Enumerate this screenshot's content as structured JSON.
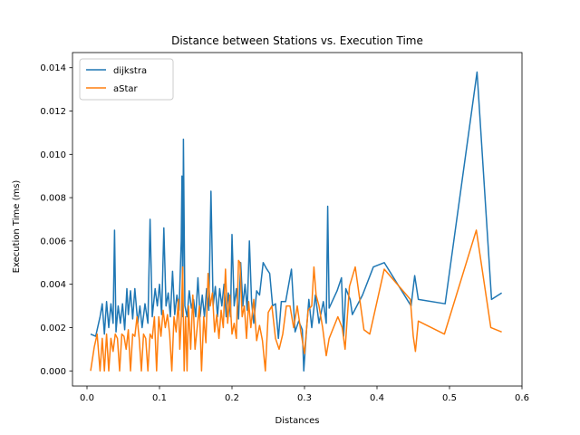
{
  "chart_data": {
    "type": "line",
    "title": "Distance between Stations vs. Execution Time",
    "xlabel": "Distances",
    "ylabel": "Execution Time (ms)",
    "xlim": [
      -0.02,
      0.6
    ],
    "ylim": [
      -0.0007,
      0.0147
    ],
    "xticks": [
      0.0,
      0.1,
      0.2,
      0.3,
      0.4,
      0.5,
      0.6
    ],
    "xtick_labels": [
      "0.0",
      "0.1",
      "0.2",
      "0.3",
      "0.4",
      "0.5",
      "0.6"
    ],
    "yticks": [
      0.0,
      0.002,
      0.004,
      0.006,
      0.008,
      0.01,
      0.012,
      0.014
    ],
    "ytick_labels": [
      "0.000",
      "0.002",
      "0.004",
      "0.006",
      "0.008",
      "0.010",
      "0.012",
      "0.014"
    ],
    "grid": false,
    "legend_position": "top-left",
    "series": [
      {
        "name": "dijkstra",
        "color": "#1f77b4",
        "points": [
          [
            0.005,
            0.0017
          ],
          [
            0.012,
            0.0016
          ],
          [
            0.018,
            0.0025
          ],
          [
            0.021,
            0.0031
          ],
          [
            0.024,
            0.0017
          ],
          [
            0.027,
            0.0032
          ],
          [
            0.03,
            0.002
          ],
          [
            0.033,
            0.0031
          ],
          [
            0.036,
            0.0022
          ],
          [
            0.038,
            0.0065
          ],
          [
            0.04,
            0.0018
          ],
          [
            0.043,
            0.003
          ],
          [
            0.046,
            0.0022
          ],
          [
            0.049,
            0.0031
          ],
          [
            0.052,
            0.0019
          ],
          [
            0.055,
            0.0038
          ],
          [
            0.057,
            0.0026
          ],
          [
            0.06,
            0.0037
          ],
          [
            0.063,
            0.0024
          ],
          [
            0.066,
            0.0038
          ],
          [
            0.07,
            0.0022
          ],
          [
            0.073,
            0.003
          ],
          [
            0.076,
            0.002
          ],
          [
            0.08,
            0.0031
          ],
          [
            0.084,
            0.0022
          ],
          [
            0.087,
            0.007
          ],
          [
            0.09,
            0.0025
          ],
          [
            0.094,
            0.0038
          ],
          [
            0.097,
            0.003
          ],
          [
            0.1,
            0.004
          ],
          [
            0.103,
            0.0026
          ],
          [
            0.106,
            0.0066
          ],
          [
            0.109,
            0.003
          ],
          [
            0.112,
            0.0036
          ],
          [
            0.115,
            0.0025
          ],
          [
            0.118,
            0.0046
          ],
          [
            0.121,
            0.0026
          ],
          [
            0.124,
            0.0035
          ],
          [
            0.127,
            0.0028
          ],
          [
            0.13,
            0.006
          ],
          [
            0.131,
            0.009
          ],
          [
            0.132,
            0.0025
          ],
          [
            0.133,
            0.0107
          ],
          [
            0.135,
            0.003
          ],
          [
            0.138,
            0.0025
          ],
          [
            0.141,
            0.0037
          ],
          [
            0.144,
            0.0029
          ],
          [
            0.147,
            0.0033
          ],
          [
            0.15,
            0.0025
          ],
          [
            0.153,
            0.0043
          ],
          [
            0.156,
            0.0025
          ],
          [
            0.159,
            0.0035
          ],
          [
            0.162,
            0.0025
          ],
          [
            0.165,
            0.0038
          ],
          [
            0.168,
            0.0028
          ],
          [
            0.171,
            0.0083
          ],
          [
            0.174,
            0.003
          ],
          [
            0.177,
            0.0039
          ],
          [
            0.18,
            0.0025
          ],
          [
            0.183,
            0.0038
          ],
          [
            0.186,
            0.003
          ],
          [
            0.189,
            0.004
          ],
          [
            0.192,
            0.0025
          ],
          [
            0.195,
            0.0036
          ],
          [
            0.198,
            0.0025
          ],
          [
            0.2,
            0.0063
          ],
          [
            0.203,
            0.003
          ],
          [
            0.206,
            0.0038
          ],
          [
            0.209,
            0.0024
          ],
          [
            0.212,
            0.005
          ],
          [
            0.215,
            0.003
          ],
          [
            0.218,
            0.004
          ],
          [
            0.221,
            0.0028
          ],
          [
            0.224,
            0.006
          ],
          [
            0.227,
            0.0032
          ],
          [
            0.23,
            0.0022
          ],
          [
            0.234,
            0.0037
          ],
          [
            0.238,
            0.0035
          ],
          [
            0.243,
            0.005
          ],
          [
            0.248,
            0.0047
          ],
          [
            0.252,
            0.0045
          ],
          [
            0.256,
            0.003
          ],
          [
            0.26,
            0.0031
          ],
          [
            0.264,
            0.0015
          ],
          [
            0.268,
            0.0032
          ],
          [
            0.274,
            0.0032
          ],
          [
            0.282,
            0.0047
          ],
          [
            0.287,
            0.0018
          ],
          [
            0.292,
            0.0023
          ],
          [
            0.297,
            0.0019
          ],
          [
            0.299,
            0.0
          ],
          [
            0.303,
            0.002
          ],
          [
            0.306,
            0.0033
          ],
          [
            0.31,
            0.002
          ],
          [
            0.315,
            0.0035
          ],
          [
            0.32,
            0.0022
          ],
          [
            0.326,
            0.0032
          ],
          [
            0.33,
            0.0022
          ],
          [
            0.332,
            0.0076
          ],
          [
            0.334,
            0.0029
          ],
          [
            0.345,
            0.0037
          ],
          [
            0.351,
            0.0043
          ],
          [
            0.354,
            0.0016
          ],
          [
            0.357,
            0.0038
          ],
          [
            0.363,
            0.0033
          ],
          [
            0.366,
            0.0026
          ],
          [
            0.38,
            0.0035
          ],
          [
            0.395,
            0.0048
          ],
          [
            0.41,
            0.005
          ],
          [
            0.447,
            0.003
          ],
          [
            0.452,
            0.0044
          ],
          [
            0.457,
            0.0033
          ],
          [
            0.494,
            0.0031
          ],
          [
            0.538,
            0.0138
          ],
          [
            0.558,
            0.0033
          ],
          [
            0.572,
            0.0036
          ]
        ]
      },
      {
        "name": "aStar",
        "color": "#ff7f0e",
        "points": [
          [
            0.005,
            0.0
          ],
          [
            0.01,
            0.0011
          ],
          [
            0.014,
            0.0017
          ],
          [
            0.018,
            0.0
          ],
          [
            0.021,
            0.0015
          ],
          [
            0.024,
            0.0
          ],
          [
            0.027,
            0.0017
          ],
          [
            0.03,
            0.0
          ],
          [
            0.033,
            0.0015
          ],
          [
            0.036,
            0.0009
          ],
          [
            0.039,
            0.0017
          ],
          [
            0.042,
            0.0015
          ],
          [
            0.045,
            0.0
          ],
          [
            0.048,
            0.0017
          ],
          [
            0.051,
            0.0016
          ],
          [
            0.054,
            0.001
          ],
          [
            0.057,
            0.0019
          ],
          [
            0.06,
            0.0
          ],
          [
            0.063,
            0.0017
          ],
          [
            0.066,
            0.0016
          ],
          [
            0.069,
            0.0025
          ],
          [
            0.072,
            0.0015
          ],
          [
            0.075,
            0.0
          ],
          [
            0.078,
            0.0017
          ],
          [
            0.081,
            0.0015
          ],
          [
            0.084,
            0.0
          ],
          [
            0.087,
            0.0017
          ],
          [
            0.09,
            0.0015
          ],
          [
            0.093,
            0.0025
          ],
          [
            0.096,
            0.0
          ],
          [
            0.099,
            0.0025
          ],
          [
            0.102,
            0.0016
          ],
          [
            0.105,
            0.0028
          ],
          [
            0.108,
            0.002
          ],
          [
            0.111,
            0.0026
          ],
          [
            0.114,
            0.0017
          ],
          [
            0.117,
            0.0
          ],
          [
            0.12,
            0.0025
          ],
          [
            0.123,
            0.0018
          ],
          [
            0.126,
            0.0033
          ],
          [
            0.128,
            0.001
          ],
          [
            0.13,
            0.0024
          ],
          [
            0.132,
            0.0048
          ],
          [
            0.134,
            0.0
          ],
          [
            0.136,
            0.0025
          ],
          [
            0.138,
            0.0
          ],
          [
            0.14,
            0.003
          ],
          [
            0.143,
            0.001
          ],
          [
            0.146,
            0.0035
          ],
          [
            0.149,
            0.001
          ],
          [
            0.152,
            0.002
          ],
          [
            0.155,
            0.003
          ],
          [
            0.158,
            0.0
          ],
          [
            0.161,
            0.0025
          ],
          [
            0.164,
            0.0013
          ],
          [
            0.167,
            0.0045
          ],
          [
            0.17,
            0.003
          ],
          [
            0.173,
            0.0036
          ],
          [
            0.176,
            0.0018
          ],
          [
            0.179,
            0.0026
          ],
          [
            0.182,
            0.0015
          ],
          [
            0.185,
            0.0028
          ],
          [
            0.188,
            0.002
          ],
          [
            0.191,
            0.0047
          ],
          [
            0.194,
            0.0022
          ],
          [
            0.197,
            0.0035
          ],
          [
            0.2,
            0.0017
          ],
          [
            0.203,
            0.0022
          ],
          [
            0.206,
            0.0015
          ],
          [
            0.209,
            0.0051
          ],
          [
            0.211,
            0.005
          ],
          [
            0.214,
            0.0025
          ],
          [
            0.217,
            0.003
          ],
          [
            0.22,
            0.0015
          ],
          [
            0.223,
            0.0032
          ],
          [
            0.226,
            0.002
          ],
          [
            0.23,
            0.0033
          ],
          [
            0.234,
            0.0014
          ],
          [
            0.238,
            0.0021
          ],
          [
            0.242,
            0.0014
          ],
          [
            0.246,
            0.0
          ],
          [
            0.25,
            0.0027
          ],
          [
            0.255,
            0.003
          ],
          [
            0.26,
            0.0015
          ],
          [
            0.265,
            0.001
          ],
          [
            0.27,
            0.0017
          ],
          [
            0.275,
            0.003
          ],
          [
            0.28,
            0.003
          ],
          [
            0.285,
            0.002
          ],
          [
            0.29,
            0.003
          ],
          [
            0.295,
            0.0018
          ],
          [
            0.3,
            0.0008
          ],
          [
            0.305,
            0.0028
          ],
          [
            0.31,
            0.003
          ],
          [
            0.313,
            0.0048
          ],
          [
            0.316,
            0.0035
          ],
          [
            0.32,
            0.003
          ],
          [
            0.325,
            0.002
          ],
          [
            0.33,
            0.0007
          ],
          [
            0.334,
            0.0015
          ],
          [
            0.346,
            0.0025
          ],
          [
            0.352,
            0.002
          ],
          [
            0.356,
            0.001
          ],
          [
            0.362,
            0.0039
          ],
          [
            0.37,
            0.0048
          ],
          [
            0.382,
            0.0019
          ],
          [
            0.39,
            0.0017
          ],
          [
            0.41,
            0.0047
          ],
          [
            0.446,
            0.0033
          ],
          [
            0.45,
            0.0016
          ],
          [
            0.453,
            0.0009
          ],
          [
            0.457,
            0.0023
          ],
          [
            0.493,
            0.0017
          ],
          [
            0.537,
            0.0065
          ],
          [
            0.557,
            0.002
          ],
          [
            0.572,
            0.0018
          ]
        ]
      }
    ]
  }
}
